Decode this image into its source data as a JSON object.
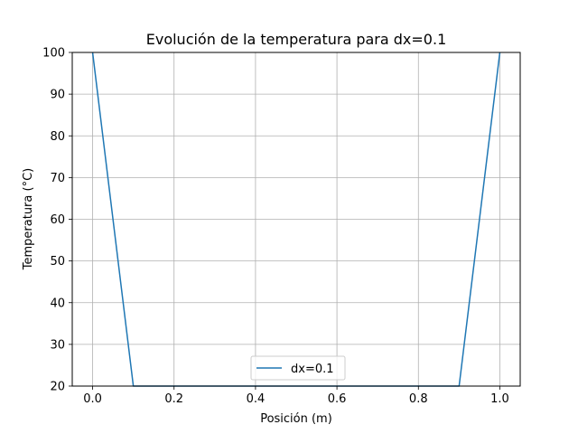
{
  "chart_data": {
    "type": "line",
    "title": "Evolución de la temperatura para dx=0.1",
    "xlabel": "Posición (m)",
    "ylabel": "Temperatura (°C)",
    "xlim": [
      -0.05,
      1.05
    ],
    "ylim": [
      20,
      100
    ],
    "xticks": [
      0.0,
      0.2,
      0.4,
      0.6,
      0.8,
      1.0
    ],
    "xtick_labels": [
      "0.0",
      "0.2",
      "0.4",
      "0.6",
      "0.8",
      "1.0"
    ],
    "yticks": [
      20,
      30,
      40,
      50,
      60,
      70,
      80,
      90,
      100
    ],
    "ytick_labels": [
      "20",
      "30",
      "40",
      "50",
      "60",
      "70",
      "80",
      "90",
      "100"
    ],
    "grid": true,
    "legend_position": "lower center",
    "series": [
      {
        "name": "dx=0.1",
        "color": "#1f77b4",
        "x": [
          0.0,
          0.1,
          0.2,
          0.3,
          0.4,
          0.5,
          0.6,
          0.7,
          0.8,
          0.9,
          1.0
        ],
        "y": [
          100,
          20,
          20,
          20,
          20,
          20,
          20,
          20,
          20,
          20,
          100
        ]
      }
    ]
  }
}
